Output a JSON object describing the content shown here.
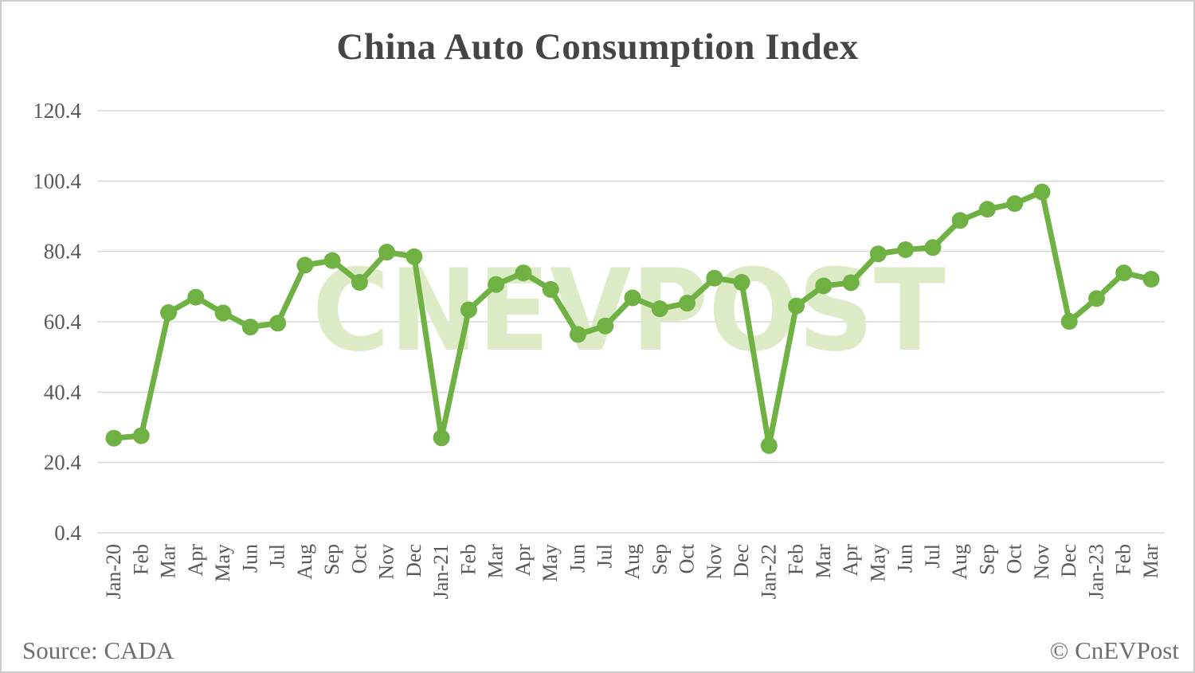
{
  "title": "China Auto Consumption Index",
  "watermark": "CNEVPOST",
  "footer": {
    "source": "Source: CADA",
    "copyright": "© CnEVPost"
  },
  "colors": {
    "line": "#6fb143",
    "watermark": "#dcebc5",
    "grid": "#d9d9d9",
    "title": "#454545",
    "axis_label": "#595959",
    "footer_text": "#6e6e6e",
    "background": "#ffffff",
    "border": "#cccccc"
  },
  "chart_data": {
    "type": "line",
    "title": "China Auto Consumption Index",
    "series_name": "China Auto Consumption Index",
    "categories": [
      "Jan-20",
      "Feb",
      "Mar",
      "Apr",
      "May",
      "Jun",
      "Jul",
      "Aug",
      "Sep",
      "Oct",
      "Nov",
      "Dec",
      "Jan-21",
      "Feb",
      "Mar",
      "Apr",
      "May",
      "Jun",
      "Jul",
      "Aug",
      "Sep",
      "Oct",
      "Nov",
      "Dec",
      "Jan-22",
      "Feb",
      "Mar",
      "Apr",
      "May",
      "Jun",
      "Jul",
      "Aug",
      "Sep",
      "Oct",
      "Nov",
      "Dec",
      "Jan-23",
      "Feb",
      "Mar"
    ],
    "values": [
      27.3,
      28.0,
      63.0,
      67.4,
      62.9,
      58.9,
      60.0,
      76.5,
      77.8,
      71.6,
      80.2,
      78.9,
      27.4,
      63.8,
      71.0,
      74.3,
      69.6,
      56.8,
      59.2,
      67.2,
      64.1,
      65.7,
      72.8,
      71.6,
      25.2,
      64.9,
      70.6,
      71.5,
      79.7,
      80.9,
      81.5,
      89.2,
      92.4,
      94.0,
      97.3,
      60.5,
      67.0,
      74.3,
      72.5
    ],
    "xlabel": "",
    "ylabel": "",
    "ylim": [
      0.4,
      120.4
    ],
    "yticks": [
      0.4,
      20.4,
      40.4,
      60.4,
      80.4,
      100.4,
      120.4
    ],
    "grid": "horizontal",
    "legend": "none"
  }
}
